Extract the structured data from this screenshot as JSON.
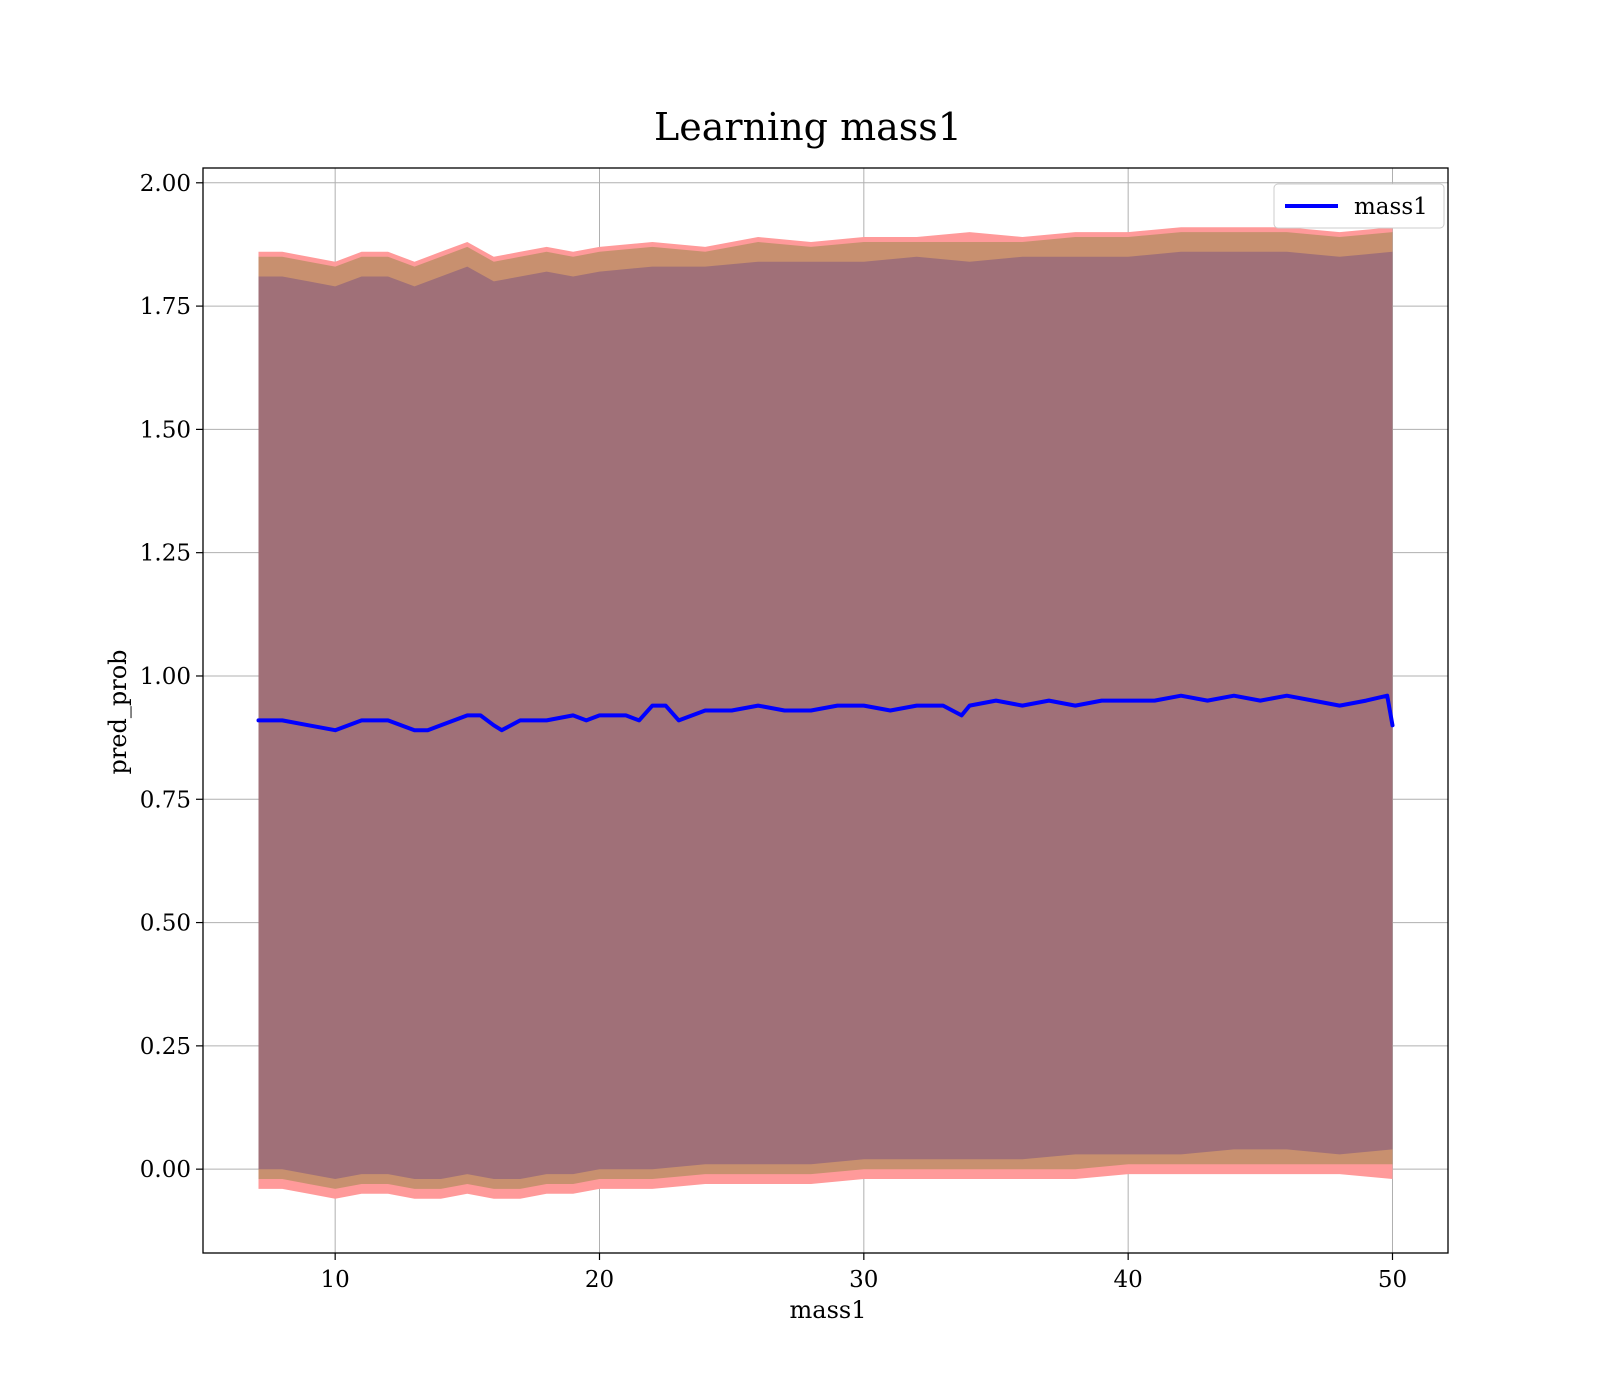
{
  "chart_data": {
    "type": "line",
    "title": "Learning mass1",
    "xlabel": "mass1",
    "ylabel": "pred_prob",
    "xlim": [
      5.0,
      52.1
    ],
    "ylim": [
      -0.17,
      2.03
    ],
    "xticks": [
      10,
      20,
      30,
      40,
      50
    ],
    "xtick_labels": [
      "10",
      "20",
      "30",
      "40",
      "50"
    ],
    "yticks": [
      0.0,
      0.25,
      0.5,
      0.75,
      1.0,
      1.25,
      1.5,
      1.75,
      2.0
    ],
    "ytick_labels": [
      "0.00",
      "0.25",
      "0.50",
      "0.75",
      "1.00",
      "1.25",
      "1.50",
      "1.75",
      "2.00"
    ],
    "grid": true,
    "legend": {
      "position": "top-right",
      "entries": [
        "mass1"
      ]
    },
    "series": [
      {
        "name": "mass1",
        "color": "#0000ff",
        "x": [
          7.1,
          8.0,
          9.0,
          10.0,
          11.0,
          12.0,
          13.0,
          13.5,
          14.0,
          15.0,
          15.5,
          16.0,
          16.3,
          17.0,
          18.0,
          19.0,
          19.5,
          20.0,
          21.0,
          21.5,
          22.0,
          22.5,
          23.0,
          24.0,
          25.0,
          26.0,
          27.0,
          28.0,
          29.0,
          30.0,
          31.0,
          32.0,
          33.0,
          33.7,
          34.0,
          35.0,
          36.0,
          37.0,
          38.0,
          39.0,
          40.0,
          41.0,
          42.0,
          43.0,
          44.0,
          45.0,
          46.0,
          47.0,
          48.0,
          49.0,
          49.8,
          50.0
        ],
        "values": [
          0.91,
          0.91,
          0.9,
          0.89,
          0.91,
          0.91,
          0.89,
          0.89,
          0.9,
          0.92,
          0.92,
          0.9,
          0.89,
          0.91,
          0.91,
          0.92,
          0.91,
          0.92,
          0.92,
          0.91,
          0.94,
          0.94,
          0.91,
          0.93,
          0.93,
          0.94,
          0.93,
          0.93,
          0.94,
          0.94,
          0.93,
          0.94,
          0.94,
          0.92,
          0.94,
          0.95,
          0.94,
          0.95,
          0.94,
          0.95,
          0.95,
          0.95,
          0.96,
          0.95,
          0.96,
          0.95,
          0.96,
          0.95,
          0.94,
          0.95,
          0.96,
          0.9
        ]
      }
    ],
    "bands": [
      {
        "color": "#ff9a9a",
        "x": [
          7.1,
          8.0,
          9.0,
          10.0,
          11.0,
          12.0,
          13.0,
          14.0,
          15.0,
          16.0,
          17.0,
          18.0,
          19.0,
          20.0,
          22.0,
          24.0,
          26.0,
          28.0,
          30.0,
          32.0,
          34.0,
          36.0,
          38.0,
          40.0,
          42.0,
          44.0,
          46.0,
          48.0,
          50.0
        ],
        "upper": [
          1.86,
          1.86,
          1.85,
          1.84,
          1.86,
          1.86,
          1.84,
          1.86,
          1.88,
          1.85,
          1.86,
          1.87,
          1.86,
          1.87,
          1.88,
          1.87,
          1.89,
          1.88,
          1.89,
          1.89,
          1.9,
          1.89,
          1.9,
          1.9,
          1.91,
          1.91,
          1.91,
          1.9,
          1.91
        ],
        "lower": [
          -0.04,
          -0.04,
          -0.05,
          -0.06,
          -0.05,
          -0.05,
          -0.06,
          -0.06,
          -0.05,
          -0.06,
          -0.06,
          -0.05,
          -0.05,
          -0.04,
          -0.04,
          -0.03,
          -0.03,
          -0.03,
          -0.02,
          -0.02,
          -0.02,
          -0.02,
          -0.02,
          -0.01,
          -0.01,
          -0.01,
          -0.01,
          -0.01,
          -0.02
        ]
      },
      {
        "color": "#c8906f",
        "x": [
          7.1,
          8.0,
          9.0,
          10.0,
          11.0,
          12.0,
          13.0,
          14.0,
          15.0,
          16.0,
          17.0,
          18.0,
          19.0,
          20.0,
          22.0,
          24.0,
          26.0,
          28.0,
          30.0,
          32.0,
          34.0,
          36.0,
          38.0,
          40.0,
          42.0,
          44.0,
          46.0,
          48.0,
          50.0
        ],
        "upper": [
          1.85,
          1.85,
          1.84,
          1.83,
          1.85,
          1.85,
          1.83,
          1.85,
          1.87,
          1.84,
          1.85,
          1.86,
          1.85,
          1.86,
          1.87,
          1.86,
          1.88,
          1.87,
          1.88,
          1.88,
          1.88,
          1.88,
          1.89,
          1.89,
          1.9,
          1.9,
          1.9,
          1.89,
          1.9
        ],
        "lower": [
          -0.02,
          -0.02,
          -0.03,
          -0.04,
          -0.03,
          -0.03,
          -0.04,
          -0.04,
          -0.03,
          -0.04,
          -0.04,
          -0.03,
          -0.03,
          -0.02,
          -0.02,
          -0.01,
          -0.01,
          -0.01,
          0.0,
          0.0,
          0.0,
          0.0,
          0.0,
          0.01,
          0.01,
          0.01,
          0.01,
          0.01,
          0.01
        ]
      },
      {
        "color": "#a07078",
        "x": [
          7.1,
          8.0,
          9.0,
          10.0,
          11.0,
          12.0,
          13.0,
          14.0,
          15.0,
          16.0,
          17.0,
          18.0,
          19.0,
          20.0,
          22.0,
          24.0,
          26.0,
          28.0,
          30.0,
          32.0,
          34.0,
          36.0,
          38.0,
          40.0,
          42.0,
          44.0,
          46.0,
          48.0,
          50.0
        ],
        "upper": [
          1.81,
          1.81,
          1.8,
          1.79,
          1.81,
          1.81,
          1.79,
          1.81,
          1.83,
          1.8,
          1.81,
          1.82,
          1.81,
          1.82,
          1.83,
          1.83,
          1.84,
          1.84,
          1.84,
          1.85,
          1.84,
          1.85,
          1.85,
          1.85,
          1.86,
          1.86,
          1.86,
          1.85,
          1.86
        ],
        "lower": [
          0.0,
          0.0,
          -0.01,
          -0.02,
          -0.01,
          -0.01,
          -0.02,
          -0.02,
          -0.01,
          -0.02,
          -0.02,
          -0.01,
          -0.01,
          0.0,
          0.0,
          0.01,
          0.01,
          0.01,
          0.02,
          0.02,
          0.02,
          0.02,
          0.03,
          0.03,
          0.03,
          0.04,
          0.04,
          0.03,
          0.04
        ]
      }
    ]
  }
}
